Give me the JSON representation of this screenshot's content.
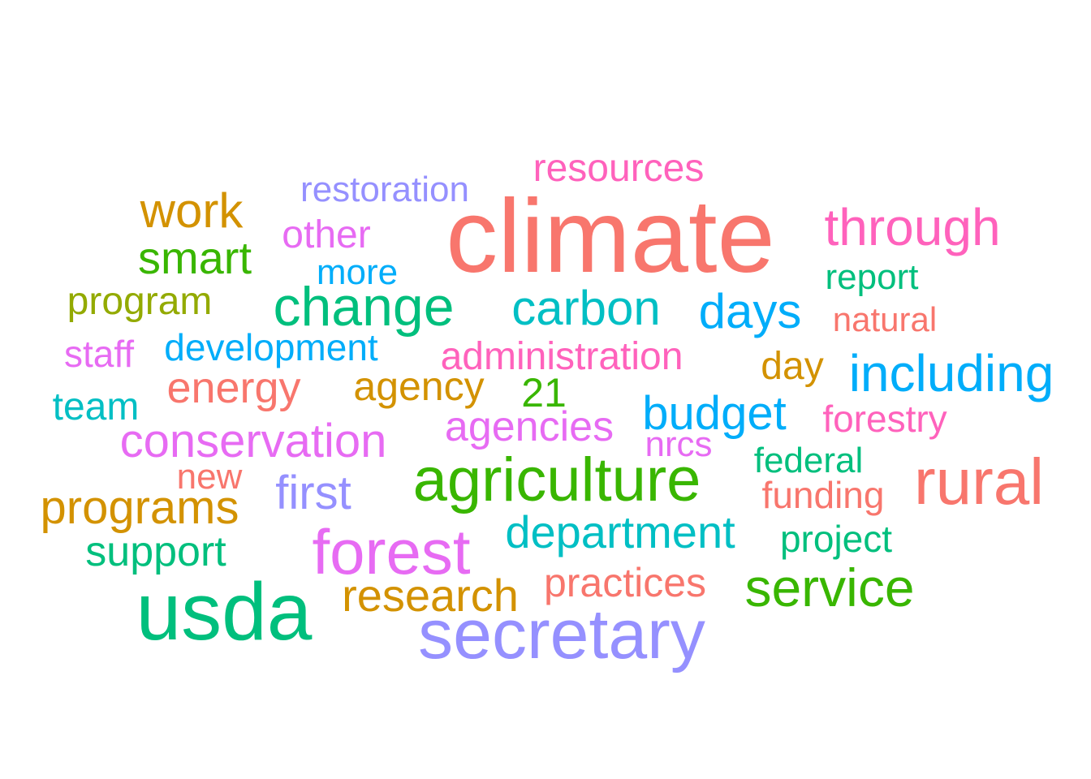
{
  "palette": {
    "red": "#F8766D",
    "orange": "#D39200",
    "olive": "#93AA00",
    "green": "#00BA38",
    "green2": "#00C19F",
    "teal": "#00B9E3",
    "blue": "#619CFF",
    "purple": "#9590FF",
    "magenta": "#E76BF3",
    "pink": "#FF62BC",
    "forest": "#39B600",
    "mint": "#00BF7D",
    "cyan": "#00BFC4",
    "sky": "#00ADFA",
    "gold": "#DB8E00"
  },
  "words": [
    {
      "id": "climate",
      "text": "climate",
      "color": "#F8766D"
    },
    {
      "id": "resources",
      "text": "resources",
      "color": "#FF62BC"
    },
    {
      "id": "restoration",
      "text": "restoration",
      "color": "#9590FF"
    },
    {
      "id": "work",
      "text": "work",
      "color": "#D39200"
    },
    {
      "id": "through",
      "text": "through",
      "color": "#FF62BC"
    },
    {
      "id": "other",
      "text": "other",
      "color": "#E76BF3"
    },
    {
      "id": "smart",
      "text": "smart",
      "color": "#39B600"
    },
    {
      "id": "report",
      "text": "report",
      "color": "#00BF7D"
    },
    {
      "id": "more",
      "text": "more",
      "color": "#00ADFA"
    },
    {
      "id": "change",
      "text": "change",
      "color": "#00BF7D"
    },
    {
      "id": "program",
      "text": "program",
      "color": "#93AA00"
    },
    {
      "id": "carbon",
      "text": "carbon",
      "color": "#00BFC4"
    },
    {
      "id": "days",
      "text": "days",
      "color": "#00ADFA"
    },
    {
      "id": "natural",
      "text": "natural",
      "color": "#F8766D"
    },
    {
      "id": "staff",
      "text": "staff",
      "color": "#E76BF3"
    },
    {
      "id": "development",
      "text": "development",
      "color": "#00ADFA"
    },
    {
      "id": "administration",
      "text": "administration",
      "color": "#FF62BC"
    },
    {
      "id": "day",
      "text": "day",
      "color": "#D39200"
    },
    {
      "id": "including",
      "text": "including",
      "color": "#00ADFA"
    },
    {
      "id": "energy",
      "text": "energy",
      "color": "#F8766D"
    },
    {
      "id": "agency",
      "text": "agency",
      "color": "#D39200"
    },
    {
      "id": "21",
      "text": "21",
      "color": "#39B600"
    },
    {
      "id": "team",
      "text": "team",
      "color": "#00BFC4"
    },
    {
      "id": "budget",
      "text": "budget",
      "color": "#00ADFA"
    },
    {
      "id": "forestry",
      "text": "forestry",
      "color": "#FF62BC"
    },
    {
      "id": "agencies",
      "text": "agencies",
      "color": "#E76BF3"
    },
    {
      "id": "conservation",
      "text": "conservation",
      "color": "#E76BF3"
    },
    {
      "id": "nrcs",
      "text": "nrcs",
      "color": "#E76BF3"
    },
    {
      "id": "federal",
      "text": "federal",
      "color": "#00BF7D"
    },
    {
      "id": "new",
      "text": "new",
      "color": "#F8766D"
    },
    {
      "id": "agriculture",
      "text": "agriculture",
      "color": "#39B600"
    },
    {
      "id": "rural",
      "text": "rural",
      "color": "#F8766D"
    },
    {
      "id": "first",
      "text": "first",
      "color": "#9590FF"
    },
    {
      "id": "funding",
      "text": "funding",
      "color": "#F8766D"
    },
    {
      "id": "programs",
      "text": "programs",
      "color": "#D39200"
    },
    {
      "id": "department",
      "text": "department",
      "color": "#00BFC4"
    },
    {
      "id": "project",
      "text": "project",
      "color": "#00BF7D"
    },
    {
      "id": "forest",
      "text": "forest",
      "color": "#E76BF3"
    },
    {
      "id": "support",
      "text": "support",
      "color": "#00BF7D"
    },
    {
      "id": "practices",
      "text": "practices",
      "color": "#F8766D"
    },
    {
      "id": "service",
      "text": "service",
      "color": "#39B600"
    },
    {
      "id": "usda",
      "text": "usda",
      "color": "#00BF7D"
    },
    {
      "id": "research",
      "text": "research",
      "color": "#D39200"
    },
    {
      "id": "secretary",
      "text": "secretary",
      "color": "#9590FF"
    }
  ]
}
